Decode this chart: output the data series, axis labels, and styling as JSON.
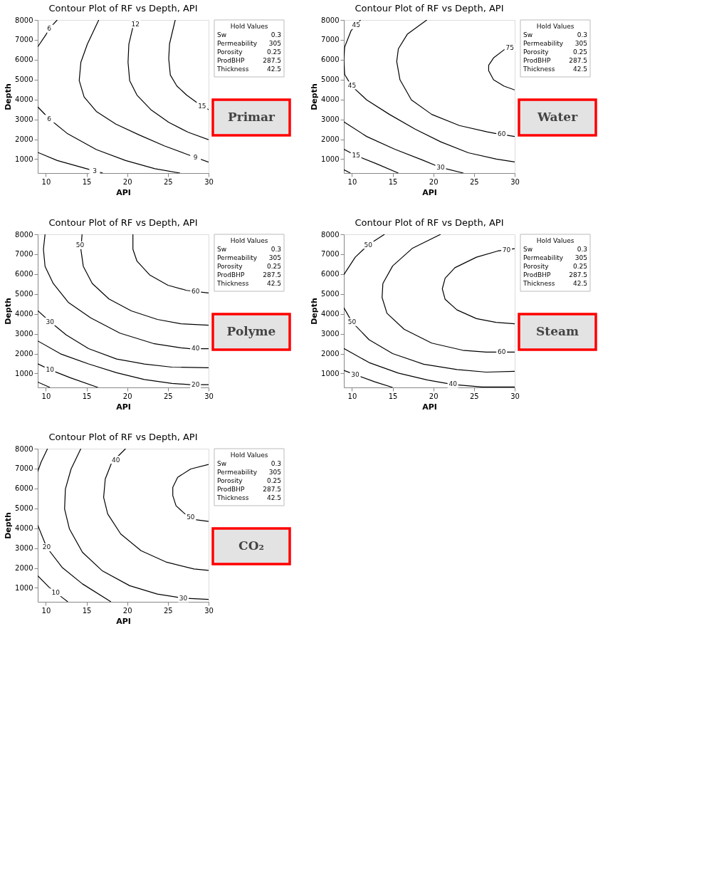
{
  "chart_data": [
    {
      "type": "line",
      "title": "Contour Plot of RF vs Depth, API",
      "xlabel": "API",
      "ylabel": "Depth",
      "xlim": [
        9,
        30
      ],
      "ylim": [
        300,
        8000
      ],
      "xticks": [
        10,
        15,
        20,
        25,
        30
      ],
      "yticks": [
        1000,
        2000,
        3000,
        4000,
        5000,
        6000,
        7000,
        8000
      ],
      "grid": false,
      "legend": false,
      "series": [
        {
          "color": "#000000",
          "x": [
            9,
            10,
            10.4,
            11.4
          ],
          "values": [
            6650,
            7250,
            7560,
            8000
          ]
        },
        {
          "color": "#000000",
          "x": [
            16.5,
            15.1,
            14.3,
            14.1,
            14.7,
            16.2,
            18.6,
            21.5,
            24.6,
            27.3,
            30
          ],
          "values": [
            8000,
            6780,
            5870,
            4950,
            4130,
            3400,
            2760,
            2210,
            1660,
            1250,
            850
          ]
        },
        {
          "color": "#000000",
          "x": [
            20.9,
            20.2,
            20.1,
            20.3,
            21.2,
            22.9,
            25.1,
            27.5,
            30
          ],
          "values": [
            8000,
            6780,
            5870,
            4950,
            4220,
            3490,
            2850,
            2350,
            1980
          ]
        },
        {
          "color": "#000000",
          "x": [
            25.9,
            25.2,
            25.1,
            25.3,
            26.1,
            27.3,
            28.5,
            30
          ],
          "values": [
            8000,
            6800,
            6050,
            5230,
            4680,
            4220,
            3860,
            3490
          ]
        },
        {
          "color": "#000000",
          "x": [
            9,
            10.4,
            12.6,
            16.2,
            19.8,
            23.4,
            26.5
          ],
          "values": [
            3630,
            3030,
            2300,
            1480,
            930,
            520,
            300
          ]
        },
        {
          "color": "#000000",
          "x": [
            9,
            11.4,
            15,
            17
          ],
          "values": [
            1340,
            930,
            520,
            300
          ]
        }
      ],
      "annotations": [
        {
          "text": "6",
          "x": 10.4,
          "y": 7560
        },
        {
          "text": "12",
          "x": 21,
          "y": 7790
        },
        {
          "text": "15",
          "x": 29.2,
          "y": 3680
        },
        {
          "text": "6",
          "x": 10.4,
          "y": 3030
        },
        {
          "text": "9",
          "x": 28.4,
          "y": 1080
        },
        {
          "text": "3",
          "x": 16,
          "y": 410
        },
        "Hold Values",
        "Sw",
        "0.3",
        "Permeability",
        "305",
        "Porosity",
        "0.25",
        "ProdBHP",
        "287.5",
        "Thickness",
        "42.5",
        "Primar"
      ]
    },
    {
      "type": "line",
      "title": "Contour Plot of RF vs Depth, API",
      "xlabel": "API",
      "ylabel": "Depth",
      "xlim": [
        9,
        30
      ],
      "ylim": [
        300,
        8000
      ],
      "xticks": [
        10,
        15,
        20,
        25,
        30
      ],
      "yticks": [
        1000,
        2000,
        3000,
        4000,
        5000,
        6000,
        7000,
        8000
      ],
      "grid": false,
      "legend": false,
      "series": [
        {
          "color": "#000000",
          "x": [
            11.05,
            9.9,
            9.1,
            9,
            9.1,
            9.9,
            11.8,
            14.6,
            17.75,
            20.9,
            24.3,
            27.75,
            30
          ],
          "values": [
            8000,
            7470,
            6640,
            6000,
            5260,
            4710,
            3980,
            3250,
            2510,
            1870,
            1320,
            1000,
            860
          ]
        },
        {
          "color": "#000000",
          "x": [
            19.2,
            16.8,
            15.7,
            15.5,
            15.9,
            17.3,
            19.8,
            23.2,
            26.6,
            27.75,
            30
          ],
          "values": [
            8000,
            7280,
            6550,
            5910,
            4990,
            3980,
            3250,
            2690,
            2370,
            2280,
            2140
          ]
        },
        {
          "color": "#000000",
          "x": [
            30,
            28.7,
            27.4,
            26.8,
            26.8,
            27.4,
            28.7,
            30
          ],
          "values": [
            6720,
            6500,
            6090,
            5720,
            5450,
            4990,
            4670,
            4480
          ]
        },
        {
          "color": "#000000",
          "x": [
            9,
            11.8,
            15.25,
            18.7,
            20.9,
            23.7
          ],
          "values": [
            2880,
            2140,
            1500,
            950,
            580,
            300
          ]
        },
        {
          "color": "#000000",
          "x": [
            9,
            10.5,
            13,
            15.7
          ],
          "values": [
            1500,
            1180,
            770,
            300
          ]
        },
        {
          "color": "#000000",
          "x": [
            9,
            9.8
          ],
          "values": [
            470,
            300
          ]
        }
      ],
      "annotations": [
        {
          "text": "45",
          "x": 10.5,
          "y": 7740
        },
        {
          "text": "45",
          "x": 10,
          "y": 4710
        },
        {
          "text": "75",
          "x": 29.4,
          "y": 6610
        },
        {
          "text": "60",
          "x": 28.4,
          "y": 2280
        },
        {
          "text": "30",
          "x": 20.9,
          "y": 580
        },
        {
          "text": "15",
          "x": 10.5,
          "y": 1210
        },
        "Hold Values",
        "Sw",
        "0.3",
        "Permeability",
        "305",
        "Porosity",
        "0.25",
        "ProdBHP",
        "287.5",
        "Thickness",
        "42.5",
        "Water"
      ]
    },
    {
      "type": "line",
      "title": "Contour Plot of RF vs Depth, API",
      "xlabel": "API",
      "ylabel": "Depth",
      "xlim": [
        9,
        30
      ],
      "ylim": [
        300,
        8000
      ],
      "xticks": [
        10,
        15,
        20,
        25,
        30
      ],
      "yticks": [
        1000,
        2000,
        3000,
        4000,
        5000,
        6000,
        7000,
        8000
      ],
      "grid": false,
      "legend": false,
      "series": [
        {
          "color": "#000000",
          "x": [
            20.7,
            20.7,
            21.2,
            22.75,
            25,
            27.3,
            30
          ],
          "values": [
            8000,
            7250,
            6650,
            5960,
            5440,
            5180,
            5050
          ]
        },
        {
          "color": "#000000",
          "x": [
            14.45,
            14.3,
            14.6,
            15.7,
            17.75,
            20.5,
            23.7,
            26.6,
            30
          ],
          "values": [
            8000,
            7250,
            6390,
            5530,
            4750,
            4150,
            3720,
            3500,
            3430
          ]
        },
        {
          "color": "#000000",
          "x": [
            9.9,
            9.7,
            9.9,
            10.9,
            12.75,
            15.5,
            19.1,
            23.2,
            26.6,
            27.75,
            30
          ],
          "values": [
            8000,
            7250,
            6390,
            5530,
            4580,
            3800,
            3030,
            2510,
            2290,
            2250,
            2250
          ]
        },
        {
          "color": "#000000",
          "x": [
            9,
            10.5,
            12.5,
            15.25,
            18.7,
            22.1,
            25.5,
            30
          ],
          "values": [
            4160,
            3610,
            2940,
            2250,
            1730,
            1480,
            1320,
            1290
          ]
        },
        {
          "color": "#000000",
          "x": [
            9,
            11.8,
            15.25,
            18.7,
            22.1,
            25.5,
            27.75,
            30
          ],
          "values": [
            2640,
            1990,
            1480,
            1040,
            700,
            500,
            440,
            440
          ]
        },
        {
          "color": "#000000",
          "x": [
            9,
            10.5,
            13,
            16.4
          ],
          "values": [
            1490,
            1190,
            790,
            300
          ]
        },
        {
          "color": "#000000",
          "x": [
            9,
            10.5
          ],
          "values": [
            570,
            300
          ]
        }
      ],
      "annotations": [
        {
          "text": "50",
          "x": 14.2,
          "y": 7450
        },
        {
          "text": "60",
          "x": 28.4,
          "y": 5140
        },
        {
          "text": "30",
          "x": 10.5,
          "y": 3610
        },
        {
          "text": "40",
          "x": 28.4,
          "y": 2270
        },
        {
          "text": "10",
          "x": 10.5,
          "y": 1190
        },
        {
          "text": "20",
          "x": 28.4,
          "y": 440
        },
        "Hold Values",
        "Sw",
        "0.3",
        "Permeability",
        "305",
        "Porosity",
        "0.25",
        "ProdBHP",
        "287.5",
        "Thickness",
        "42.5",
        "Polyme"
      ]
    },
    {
      "type": "line",
      "title": "Contour Plot of RF vs Depth, API",
      "xlabel": "API",
      "ylabel": "Depth",
      "xlim": [
        9,
        30
      ],
      "ylim": [
        300,
        8000
      ],
      "xticks": [
        10,
        15,
        20,
        25,
        30
      ],
      "yticks": [
        1000,
        2000,
        3000,
        4000,
        5000,
        6000,
        7000,
        8000
      ],
      "grid": false,
      "legend": false,
      "series": [
        {
          "color": "#000000",
          "x": [
            30,
            27.9,
            25.3,
            22.65,
            21.45,
            21.1,
            21.45,
            22.9,
            25.3,
            27.7,
            30
          ],
          "values": [
            7280,
            7160,
            6850,
            6320,
            5790,
            5260,
            4730,
            4200,
            3760,
            3570,
            3500
          ]
        },
        {
          "color": "#000000",
          "x": [
            20.9,
            17.4,
            15,
            13.8,
            13.7,
            14.3,
            16.4,
            19.8,
            23.6,
            26.5,
            30
          ],
          "values": [
            8000,
            7290,
            6410,
            5530,
            4820,
            4030,
            3230,
            2530,
            2170,
            2080,
            2080
          ]
        },
        {
          "color": "#000000",
          "x": [
            14,
            12,
            10.4,
            9
          ],
          "values": [
            8000,
            7470,
            6850,
            5970
          ]
        },
        {
          "color": "#000000",
          "x": [
            9,
            10,
            12.1,
            15,
            18.8,
            22.9,
            26.5,
            30
          ],
          "values": [
            4310,
            3590,
            2700,
            2000,
            1470,
            1200,
            1070,
            1110
          ]
        },
        {
          "color": "#000000",
          "x": [
            9,
            12.1,
            15.7,
            19.3,
            22.4,
            26,
            30
          ],
          "values": [
            2260,
            1550,
            1020,
            670,
            450,
            320,
            320
          ]
        },
        {
          "color": "#000000",
          "x": [
            9,
            10.4,
            12.8,
            15
          ],
          "values": [
            1160,
            940,
            580,
            300
          ]
        }
      ],
      "annotations": [
        {
          "text": "50",
          "x": 12,
          "y": 7470
        },
        {
          "text": "70",
          "x": 29,
          "y": 7220
        },
        {
          "text": "50",
          "x": 10,
          "y": 3590
        },
        {
          "text": "60",
          "x": 28.4,
          "y": 2080
        },
        {
          "text": "30",
          "x": 10.4,
          "y": 940
        },
        {
          "text": "40",
          "x": 22.4,
          "y": 470
        },
        "Hold Values",
        "Sw",
        "0.3",
        "Permeability",
        "305",
        "Porosity",
        "0.25",
        "ProdBHP",
        "287.5",
        "Thickness",
        "42.5",
        "Steam"
      ]
    },
    {
      "type": "line",
      "title": "Contour Plot of RF vs Depth, API",
      "xlabel": "API",
      "ylabel": "Depth",
      "xlim": [
        9,
        30
      ],
      "ylim": [
        300,
        8000
      ],
      "xticks": [
        10,
        15,
        20,
        25,
        30
      ],
      "yticks": [
        1000,
        2000,
        3000,
        4000,
        5000,
        6000,
        7000,
        8000
      ],
      "grid": false,
      "legend": false,
      "series": [
        {
          "color": "#000000",
          "x": [
            30,
            27.8,
            26.2,
            25.6,
            25.6,
            26,
            27.1,
            28.5,
            30
          ],
          "values": [
            7210,
            6980,
            6560,
            6060,
            5640,
            5130,
            4720,
            4420,
            4340
          ]
        },
        {
          "color": "#000000",
          "x": [
            19.8,
            18.1,
            17.3,
            17.1,
            17.6,
            19.2,
            21.7,
            24.85,
            28.2,
            30
          ],
          "values": [
            8000,
            7310,
            6480,
            5550,
            4720,
            3710,
            2870,
            2290,
            1950,
            1880
          ]
        },
        {
          "color": "#000000",
          "x": [
            14.3,
            13.1,
            12.4,
            12.3,
            12.9,
            14.5,
            16.9,
            20.3,
            23.7,
            26.9,
            30
          ],
          "values": [
            8000,
            6980,
            5970,
            4970,
            3960,
            2790,
            1870,
            1110,
            690,
            480,
            420
          ]
        },
        {
          "color": "#000000",
          "x": [
            10.2,
            9.4,
            9
          ],
          "values": [
            8000,
            7310,
            6850
          ]
        },
        {
          "color": "#000000",
          "x": [
            9,
            10.1,
            12,
            14.5,
            18
          ],
          "values": [
            4150,
            3040,
            2030,
            1200,
            300
          ]
        },
        {
          "color": "#000000",
          "x": [
            9,
            10.4,
            12,
            12.7
          ],
          "values": [
            1610,
            1030,
            520,
            300
          ]
        }
      ],
      "annotations": [
        {
          "text": "40",
          "x": 18.6,
          "y": 7440
        },
        {
          "text": "50",
          "x": 27.8,
          "y": 4570
        },
        {
          "text": "20",
          "x": 10.1,
          "y": 3040
        },
        {
          "text": "30",
          "x": 26.9,
          "y": 480
        },
        {
          "text": "10",
          "x": 11.2,
          "y": 775
        },
        "Hold Values",
        "Sw",
        "0.3",
        "Permeability",
        "305",
        "Porosity",
        "0.25",
        "ProdBHP",
        "287.5",
        "Thickness",
        "42.5",
        "CO₂"
      ]
    }
  ]
}
